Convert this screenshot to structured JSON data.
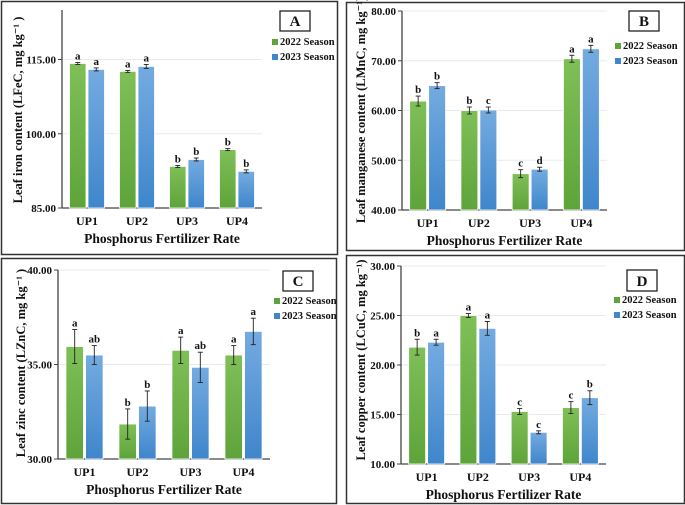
{
  "colors": {
    "series_2022_top": "#7fbf57",
    "series_2022_bottom": "#5ea43a",
    "series_2023_top": "#74abe0",
    "series_2023_bottom": "#3f86cc",
    "gridline": "#e6ebf2",
    "axis": "#444444",
    "panel_border": "#333333"
  },
  "chart_data": [
    {
      "panel": "A",
      "type": "bar",
      "title": "A",
      "xlabel": "Phosphorus Fertilizer Rate",
      "ylabel": "Leaf iron content (LFeC, mg kg⁻¹ )",
      "categories": [
        "UP1",
        "UP2",
        "UP3",
        "UP4"
      ],
      "ylim": [
        85,
        125
      ],
      "yticks": [
        85,
        100,
        115
      ],
      "ytick_labels": [
        "85.00",
        "100.00",
        "115.00"
      ],
      "grid": true,
      "legend": "top-right",
      "series": [
        {
          "name": "2022 Season",
          "values": [
            114.2,
            112.6,
            93.4,
            96.8
          ],
          "errors": [
            0.2,
            0.2,
            0.2,
            0.2
          ],
          "letters": [
            "a",
            "a",
            "b",
            "b"
          ]
        },
        {
          "name": "2023 Season",
          "values": [
            113.0,
            113.6,
            94.8,
            92.4
          ],
          "errors": [
            0.3,
            0.4,
            0.3,
            0.3
          ],
          "letters": [
            "a",
            "a",
            "b",
            "b"
          ]
        }
      ]
    },
    {
      "panel": "B",
      "type": "bar",
      "title": "B",
      "xlabel": "Phosphorus Fertilizer Rate",
      "ylabel": "Leaf manganese content (LMnC, mg kg⁻¹)",
      "categories": [
        "UP1",
        "UP2",
        "UP3",
        "UP4"
      ],
      "ylim": [
        40,
        80
      ],
      "yticks": [
        40,
        50,
        60,
        70,
        80
      ],
      "ytick_labels": [
        "40.00",
        "50.00",
        "60.00",
        "70.00",
        "80.00"
      ],
      "grid": true,
      "legend": "top-right",
      "series": [
        {
          "name": "2022 Season",
          "values": [
            61.9,
            60.0,
            47.3,
            70.4
          ],
          "errors": [
            1.0,
            0.7,
            0.8,
            0.7
          ],
          "letters": [
            "b",
            "b",
            "c",
            "a"
          ]
        },
        {
          "name": "2023 Season",
          "values": [
            65.0,
            60.1,
            48.2,
            72.4
          ],
          "errors": [
            0.6,
            0.6,
            0.4,
            0.7
          ],
          "letters": [
            "b",
            "c",
            "d",
            "a"
          ]
        }
      ]
    },
    {
      "panel": "C",
      "type": "bar",
      "title": "C",
      "xlabel": "Phosphorus Fertilizer Rate",
      "ylabel": "Leaf zinc content (LZnC, mg kg⁻¹ )",
      "categories": [
        "UP1",
        "UP2",
        "UP3",
        "UP4"
      ],
      "ylim": [
        30,
        40
      ],
      "yticks": [
        30,
        35,
        40
      ],
      "ytick_labels": [
        "30.00",
        "35.00",
        "40.00"
      ],
      "grid": true,
      "legend": "top-right",
      "series": [
        {
          "name": "2022 Season",
          "values": [
            35.95,
            31.85,
            35.75,
            35.5
          ],
          "errors": [
            0.9,
            0.8,
            0.7,
            0.5
          ],
          "letters": [
            "a",
            "b",
            "a",
            "a"
          ]
        },
        {
          "name": "2023 Season",
          "values": [
            35.5,
            32.8,
            34.85,
            36.75
          ],
          "errors": [
            0.5,
            0.8,
            0.8,
            0.7
          ],
          "letters": [
            "ab",
            "b",
            "ab",
            "a"
          ]
        }
      ]
    },
    {
      "panel": "D",
      "type": "bar",
      "title": "D",
      "xlabel": "Phosphorus Fertilizer Rate",
      "ylabel": "Leaf copper content (LCuC, mg kg⁻¹)",
      "categories": [
        "UP1",
        "UP2",
        "UP3",
        "UP4"
      ],
      "ylim": [
        10,
        30
      ],
      "yticks": [
        10,
        15,
        20,
        25,
        30
      ],
      "ytick_labels": [
        "10.00",
        "15.00",
        "20.00",
        "25.00",
        "30.00"
      ],
      "grid": true,
      "legend": "top-right",
      "series": [
        {
          "name": "2022 Season",
          "values": [
            21.8,
            25.0,
            15.3,
            15.7
          ],
          "errors": [
            0.8,
            0.2,
            0.3,
            0.6
          ],
          "letters": [
            "b",
            "a",
            "c",
            "c"
          ]
        },
        {
          "name": "2023 Season",
          "values": [
            22.3,
            23.7,
            13.2,
            16.7
          ],
          "errors": [
            0.3,
            0.7,
            0.15,
            0.7
          ],
          "letters": [
            "a",
            "a",
            "c",
            "b"
          ]
        }
      ]
    }
  ]
}
